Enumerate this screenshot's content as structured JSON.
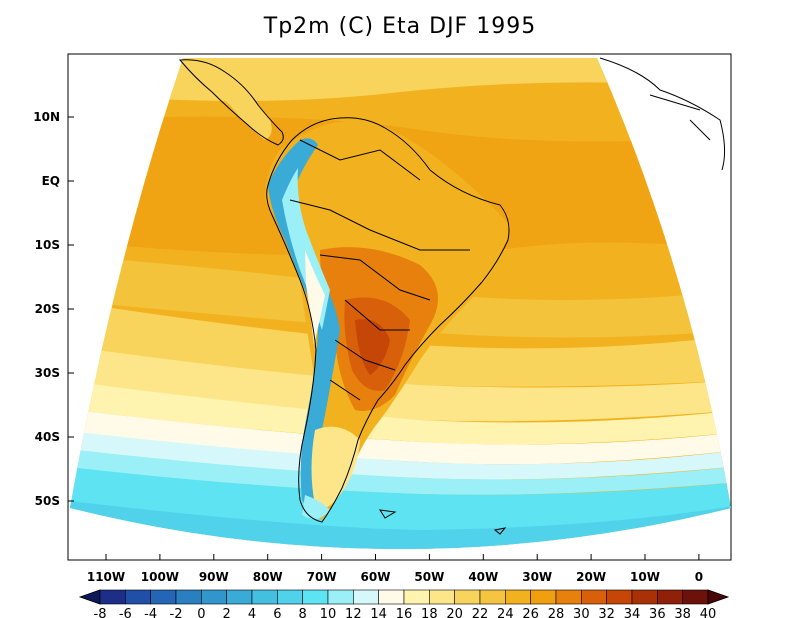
{
  "title": "Tp2m (C) Eta DJF 1995",
  "lat_labels": [
    "10N",
    "EQ",
    "10S",
    "20S",
    "30S",
    "40S",
    "50S"
  ],
  "lon_labels": [
    "110W",
    "100W",
    "90W",
    "80W",
    "70W",
    "60W",
    "50W",
    "40W",
    "30W",
    "20W",
    "10W",
    "0"
  ],
  "colorbar": {
    "levels": [
      "-8",
      "-6",
      "-4",
      "-2",
      "0",
      "2",
      "4",
      "6",
      "8",
      "10",
      "12",
      "14",
      "16",
      "18",
      "20",
      "22",
      "24",
      "26",
      "28",
      "30",
      "32",
      "34",
      "36",
      "38",
      "40"
    ],
    "colors": [
      "#1c2e88",
      "#1f4fa6",
      "#2466b5",
      "#2a7fc1",
      "#3296cc",
      "#3aaad6",
      "#44bfe0",
      "#4fd2ea",
      "#5de3f2",
      "#9af0f6",
      "#d6f8fa",
      "#fffbe8",
      "#fff3b0",
      "#fde68a",
      "#f9d45c",
      "#f5c542",
      "#f2b21f",
      "#ef9f10",
      "#e7800d",
      "#d9600a",
      "#c54606",
      "#a83206",
      "#8e2108",
      "#6d120a"
    ],
    "under_color": "#0c1a5a",
    "over_color": "#4a0508"
  }
}
